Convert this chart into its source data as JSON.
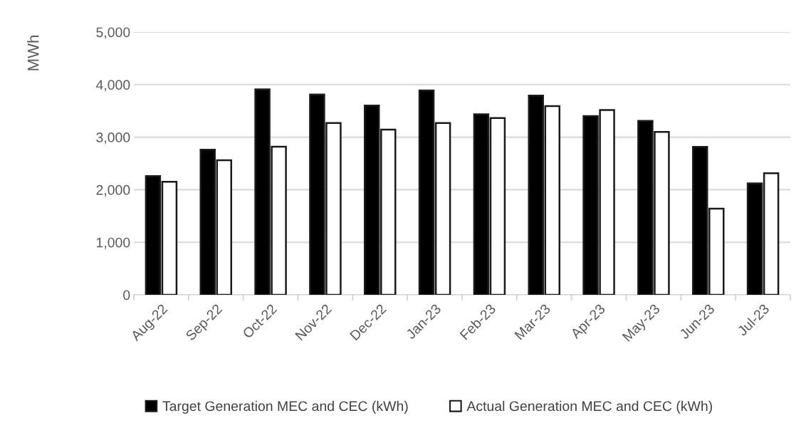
{
  "chart_data": {
    "type": "bar",
    "ylabel": "MWh",
    "categories": [
      "Aug-22",
      "Sep-22",
      "Oct-22",
      "Nov-22",
      "Dec-22",
      "Jan-23",
      "Feb-23",
      "Mar-23",
      "Apr-23",
      "May-23",
      "Jun-23",
      "Jul-23"
    ],
    "series": [
      {
        "name": "Target Generation MEC and CEC (kWh)",
        "color": "#000000",
        "values": [
          2260,
          2760,
          3910,
          3810,
          3600,
          3890,
          3435,
          3790,
          3400,
          3310,
          2815,
          2120
        ]
      },
      {
        "name": "Actual Generation MEC and CEC (kWh)",
        "color": "#ffffff",
        "values": [
          2150,
          2560,
          2820,
          3270,
          3145,
          3270,
          3365,
          3590,
          3515,
          3100,
          1640,
          2315
        ]
      }
    ],
    "ylim": [
      0,
      5000
    ],
    "yticks": [
      {
        "value": 0,
        "label": "0"
      },
      {
        "value": 1000,
        "label": "1,000"
      },
      {
        "value": 2000,
        "label": "2,000"
      },
      {
        "value": 3000,
        "label": "3,000"
      },
      {
        "value": 4000,
        "label": "4,000"
      },
      {
        "value": 5000,
        "label": "5,000"
      }
    ],
    "grid": "y",
    "legend": "bottom"
  }
}
